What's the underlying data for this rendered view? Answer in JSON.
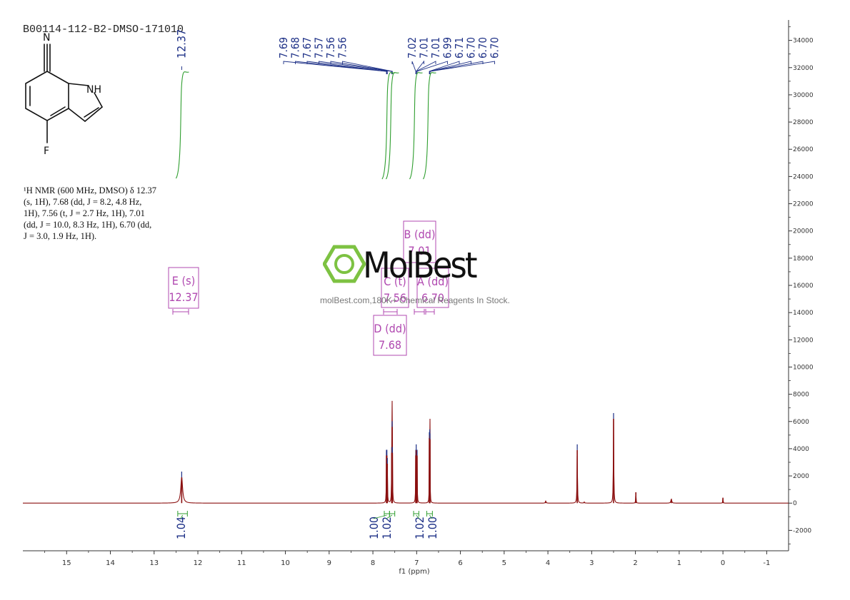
{
  "sample_id": "B00114-112-B2-DMSO-171010",
  "structure": {
    "atom_n": "N",
    "atom_nh": "NH",
    "atom_f": "F"
  },
  "nmr_description": [
    "¹H NMR (600 MHz, DMSO) δ 12.37",
    "(s, 1H), 7.68 (dd, J = 8.2, 4.8 Hz,",
    "1H), 7.56 (t, J = 2.7 Hz, 1H), 7.01",
    "(dd, J = 10.0, 8.3 Hz, 1H), 6.70 (dd,",
    "J = 3.0, 1.9 Hz, 1H)."
  ],
  "watermark": {
    "brand": "MolBest",
    "tagline": "molBest.com,180K+ Chemical Reagents In Stock."
  },
  "colors": {
    "spectrum": "#8b1010",
    "peak_label": "#1c2f86",
    "integral": "#2f9e2f",
    "multiplet": "#b048b0",
    "axis": "#333333"
  },
  "chart_data": {
    "type": "line",
    "xlabel": "f1 (ppm)",
    "x_reversed": true,
    "xlim": [
      16.0,
      -1.5
    ],
    "ylim": [
      -3500,
      35500
    ],
    "x_ticks": [
      15,
      14,
      13,
      12,
      11,
      10,
      9,
      8,
      7,
      6,
      5,
      4,
      3,
      2,
      1,
      0,
      -1
    ],
    "x_tick_labels": [
      "15",
      "14",
      "13",
      "12",
      "11",
      "10",
      "9",
      "8",
      "7",
      "6",
      "5",
      "4",
      "3",
      "2",
      "1",
      "0",
      "-1"
    ],
    "y_ticks": [
      -2000,
      0,
      2000,
      4000,
      6000,
      8000,
      10000,
      12000,
      14000,
      16000,
      18000,
      20000,
      22000,
      24000,
      26000,
      28000,
      30000,
      32000,
      34000
    ],
    "y_tick_labels": [
      "-2000",
      "0",
      "2000",
      "4000",
      "6000",
      "8000",
      "10000",
      "12000",
      "14000",
      "16000",
      "18000",
      "20000",
      "22000",
      "24000",
      "26000",
      "28000",
      "30000",
      "32000",
      "34000"
    ],
    "peaks": [
      {
        "ppm": 12.37,
        "height": 1900,
        "width": 0.025
      },
      {
        "ppm": 7.69,
        "height": 3500,
        "width": 0.004
      },
      {
        "ppm": 7.68,
        "height": 3500,
        "width": 0.004
      },
      {
        "ppm": 7.67,
        "height": 2900,
        "width": 0.004
      },
      {
        "ppm": 7.57,
        "height": 3700,
        "width": 0.004
      },
      {
        "ppm": 7.56,
        "height": 5600,
        "width": 0.004
      },
      {
        "ppm": 7.555,
        "height": 3700,
        "width": 0.004
      },
      {
        "ppm": 7.02,
        "height": 3500,
        "width": 0.004
      },
      {
        "ppm": 7.01,
        "height": 3900,
        "width": 0.004
      },
      {
        "ppm": 6.99,
        "height": 3500,
        "width": 0.004
      },
      {
        "ppm": 6.71,
        "height": 4800,
        "width": 0.003
      },
      {
        "ppm": 6.7,
        "height": 5000,
        "width": 0.003
      },
      {
        "ppm": 6.695,
        "height": 4700,
        "width": 0.003
      },
      {
        "ppm": 4.05,
        "height": 150,
        "width": 0.01
      },
      {
        "ppm": 3.33,
        "height": 3900,
        "width": 0.006
      },
      {
        "ppm": 3.17,
        "height": 80,
        "width": 0.01
      },
      {
        "ppm": 2.5,
        "height": 6200,
        "width": 0.006
      },
      {
        "ppm": 1.99,
        "height": 800,
        "width": 0.005
      },
      {
        "ppm": 1.18,
        "height": 300,
        "width": 0.012
      },
      {
        "ppm": 0.0,
        "height": 400,
        "width": 0.005
      }
    ],
    "peak_labels": [
      "12.37",
      "7.69",
      "7.68",
      "7.67",
      "7.57",
      "7.56",
      "7.56",
      "7.02",
      "7.01",
      "7.01",
      "6.99",
      "6.71",
      "6.70",
      "6.70",
      "6.70"
    ],
    "integrals": [
      {
        "from": 12.46,
        "to": 12.24,
        "value": "1.04"
      },
      {
        "from": 7.74,
        "to": 7.62,
        "value": "1.00"
      },
      {
        "from": 7.62,
        "to": 7.5,
        "value": "1.02"
      },
      {
        "from": 7.07,
        "to": 6.95,
        "value": "1.02"
      },
      {
        "from": 6.77,
        "to": 6.64,
        "value": "1.00"
      }
    ],
    "multiplets": [
      {
        "letter": "E (s)",
        "shift": "12.37"
      },
      {
        "letter": "B (dd)",
        "shift": "7.01"
      },
      {
        "letter": "C (t)",
        "shift": "7.56"
      },
      {
        "letter": "A (dd)",
        "shift": "6.70"
      },
      {
        "letter": "D (dd)",
        "shift": "7.68"
      }
    ]
  }
}
